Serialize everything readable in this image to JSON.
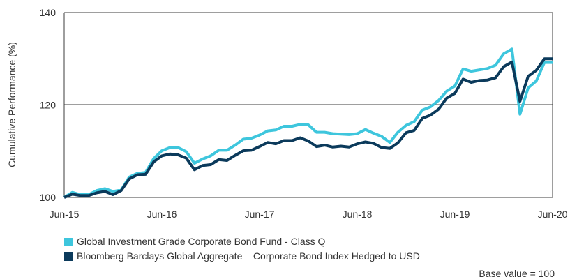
{
  "chart_data": {
    "type": "line",
    "ylabel": "Cumulative Performance (%)",
    "xlabel": "",
    "ylim": [
      100,
      140
    ],
    "yticks": [
      100,
      120,
      140
    ],
    "xticks": [
      "Jun-15",
      "Jun-16",
      "Jun-17",
      "Jun-18",
      "Jun-19",
      "Jun-20"
    ],
    "grid": "horizontal line at 120",
    "legend_position": "bottom-left",
    "note": "Base value = 100",
    "x": [
      "2015-06",
      "2015-07",
      "2015-08",
      "2015-09",
      "2015-10",
      "2015-11",
      "2015-12",
      "2016-01",
      "2016-02",
      "2016-03",
      "2016-04",
      "2016-05",
      "2016-06",
      "2016-07",
      "2016-08",
      "2016-09",
      "2016-10",
      "2016-11",
      "2016-12",
      "2017-01",
      "2017-02",
      "2017-03",
      "2017-04",
      "2017-05",
      "2017-06",
      "2017-07",
      "2017-08",
      "2017-09",
      "2017-10",
      "2017-11",
      "2017-12",
      "2018-01",
      "2018-02",
      "2018-03",
      "2018-04",
      "2018-05",
      "2018-06",
      "2018-07",
      "2018-08",
      "2018-09",
      "2018-10",
      "2018-11",
      "2018-12",
      "2019-01",
      "2019-02",
      "2019-03",
      "2019-04",
      "2019-05",
      "2019-06",
      "2019-07",
      "2019-08",
      "2019-09",
      "2019-10",
      "2019-11",
      "2019-12",
      "2020-01",
      "2020-02",
      "2020-03",
      "2020-04",
      "2020-05",
      "2020-06"
    ],
    "series": [
      {
        "name": "Global Investment Grade Corporate Bond Fund - Class Q",
        "color": "#3ec6dd",
        "values": [
          100.0,
          101.1,
          100.6,
          100.6,
          101.5,
          101.9,
          101.3,
          101.6,
          104.4,
          105.2,
          105.4,
          108.4,
          110.1,
          110.8,
          110.8,
          109.9,
          107.4,
          108.3,
          109.0,
          110.2,
          110.2,
          111.3,
          112.6,
          112.8,
          113.5,
          114.4,
          114.6,
          115.4,
          115.4,
          115.8,
          115.7,
          114.1,
          114.1,
          113.8,
          113.7,
          113.6,
          113.8,
          114.7,
          113.9,
          113.2,
          111.9,
          114.1,
          115.6,
          116.4,
          118.9,
          119.6,
          121.0,
          123.0,
          124.1,
          127.8,
          127.3,
          127.6,
          127.9,
          128.6,
          131.1,
          132.1,
          118.0,
          123.7,
          125.2,
          129.2,
          129.2
        ]
      },
      {
        "name": "Bloomberg Barclays Global Aggregate – Corporate Bond Index Hedged to USD",
        "color": "#0b3a5b",
        "values": [
          100.0,
          100.7,
          100.4,
          100.4,
          101.0,
          101.3,
          100.6,
          101.5,
          104.0,
          104.9,
          105.0,
          107.7,
          109.0,
          109.4,
          109.2,
          108.5,
          106.0,
          106.9,
          107.1,
          108.2,
          108.0,
          109.1,
          110.1,
          110.2,
          111.0,
          111.9,
          111.6,
          112.3,
          112.3,
          112.9,
          112.2,
          111.0,
          111.3,
          110.9,
          111.1,
          110.9,
          111.6,
          112.0,
          111.7,
          110.8,
          110.6,
          111.8,
          114.0,
          114.5,
          117.1,
          117.8,
          119.1,
          121.5,
          122.5,
          125.6,
          124.9,
          125.3,
          125.4,
          125.9,
          128.3,
          129.3,
          120.8,
          126.2,
          127.5,
          130.0,
          130.0
        ]
      }
    ]
  }
}
